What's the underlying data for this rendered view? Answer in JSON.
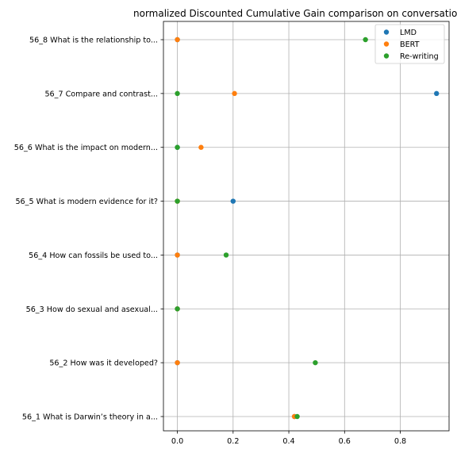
{
  "chart_data": {
    "type": "scatter",
    "title": "normalized Discounted Cumulative Gain comparison on conversatio",
    "xlabel": "",
    "ylabel": "",
    "xlim": [
      -0.05,
      0.975
    ],
    "xticks": [
      0.0,
      0.2,
      0.4,
      0.6,
      0.8
    ],
    "xtick_labels": [
      "0.0",
      "0.2",
      "0.4",
      "0.6",
      "0.8"
    ],
    "grid": true,
    "legend_position": "top-right",
    "categories": [
      "56_1 What is Darwin’s theory in a...",
      "56_2 How was it developed?",
      "56_3 How do sexual and asexual...",
      "56_4 How can fossils be used to...",
      "56_5 What is modern evidence for it?",
      "56_6 What is the impact on modern...",
      "56_7 Compare and contrast...",
      "56_8 What is the relationship to..."
    ],
    "series": [
      {
        "name": "LMD",
        "color": "#1f77b4",
        "values": [
          0.42,
          0.0,
          0.0,
          0.0,
          0.2,
          0.0,
          0.93,
          0.0
        ]
      },
      {
        "name": "BERT",
        "color": "#ff7f0e",
        "values": [
          0.42,
          0.0,
          0.0,
          0.0,
          0.0,
          0.085,
          0.205,
          0.0
        ]
      },
      {
        "name": "Re-writing",
        "color": "#2ca02c",
        "values": [
          0.43,
          0.495,
          0.0,
          0.175,
          0.0,
          0.0,
          0.0,
          0.675
        ]
      }
    ]
  }
}
